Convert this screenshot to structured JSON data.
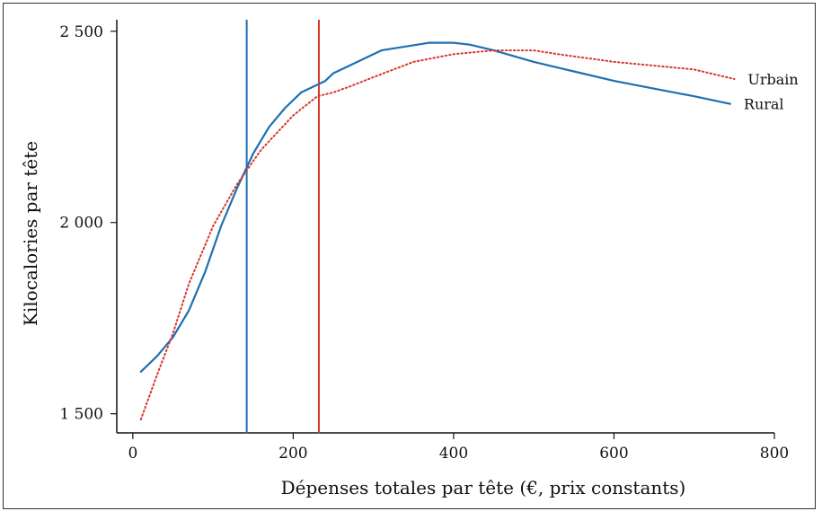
{
  "chart_data": {
    "type": "line",
    "title": "",
    "xlabel": "Dépenses totales par tête (€, prix constants)",
    "ylabel": "Kilocalories par tête",
    "xlim": [
      -20,
      800
    ],
    "ylim": [
      1450,
      2530
    ],
    "x_ticks": [
      0,
      200,
      400,
      600,
      800
    ],
    "x_tick_labels": [
      "0",
      "200",
      "400",
      "600",
      "800"
    ],
    "y_ticks": [
      1500,
      2000,
      2500
    ],
    "y_tick_labels": [
      "1 500",
      "2 000",
      "2 500"
    ],
    "grid": false,
    "legend": "labels at line ends (right)",
    "series": [
      {
        "name": "Rural",
        "color": "#1f6fb2",
        "style": "solid",
        "x": [
          10,
          30,
          50,
          70,
          90,
          110,
          130,
          150,
          170,
          190,
          210,
          230,
          240,
          250,
          270,
          290,
          310,
          340,
          370,
          400,
          420,
          450,
          500,
          550,
          600,
          650,
          700,
          745
        ],
        "y": [
          1610,
          1650,
          1700,
          1770,
          1870,
          1990,
          2090,
          2180,
          2250,
          2300,
          2340,
          2360,
          2370,
          2390,
          2410,
          2430,
          2450,
          2460,
          2470,
          2470,
          2465,
          2450,
          2420,
          2395,
          2370,
          2350,
          2330,
          2310
        ]
      },
      {
        "name": "Urbain",
        "color": "#d7372b",
        "style": "dotted",
        "x": [
          10,
          30,
          50,
          70,
          100,
          130,
          160,
          200,
          230,
          250,
          270,
          300,
          350,
          400,
          450,
          500,
          530,
          600,
          650,
          700,
          750
        ],
        "y": [
          1485,
          1600,
          1710,
          1840,
          1990,
          2100,
          2190,
          2280,
          2330,
          2340,
          2355,
          2380,
          2420,
          2440,
          2450,
          2450,
          2440,
          2420,
          2410,
          2400,
          2375
        ]
      }
    ],
    "vertical_lines": [
      {
        "x": 142,
        "color": "#1f6fb2"
      },
      {
        "x": 232,
        "color": "#d7372b"
      }
    ]
  }
}
